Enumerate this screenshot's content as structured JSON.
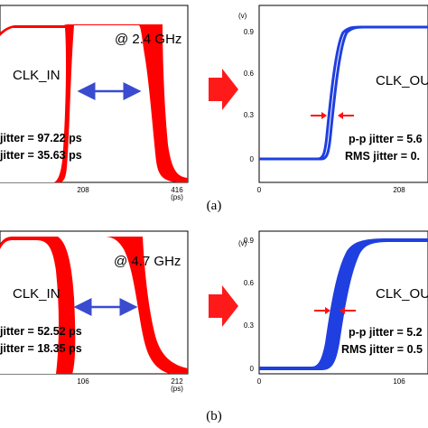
{
  "figure": {
    "rows": [
      {
        "caption": "(a)",
        "left_panel": {
          "signal_label": "CLK_IN",
          "frequency_label": "@ 2.4 GHz",
          "jitter_pp": "jitter = 97.22 ps",
          "jitter_rms": "jitter = 35.63 ps",
          "x_ticks": [
            "208",
            "416"
          ],
          "x_unit": "(ps)"
        },
        "right_panel": {
          "signal_label": "CLK_OU",
          "jitter_pp": "p-p jitter = 5.6",
          "jitter_rms": "RMS jitter = 0.",
          "y_unit": "(v)",
          "y_ticks": [
            "0.9",
            "0.6",
            "0.3",
            "0"
          ],
          "x_ticks": [
            "0",
            "208"
          ]
        }
      },
      {
        "caption": "(b)",
        "left_panel": {
          "signal_label": "CLK_IN",
          "frequency_label": "@ 4.7 GHz",
          "jitter_pp": "jitter = 52.52 ps",
          "jitter_rms": "jitter = 18.35 ps",
          "x_ticks": [
            "106",
            "212"
          ],
          "x_unit": "(ps)"
        },
        "right_panel": {
          "signal_label": "CLK_OU",
          "jitter_pp": "p-p jitter = 5.2",
          "jitter_rms": "RMS jitter = 0.5",
          "y_unit": "(v)",
          "y_ticks": [
            "0.9",
            "0.6",
            "0.3",
            "0"
          ],
          "x_ticks": [
            "0",
            "106"
          ]
        }
      }
    ],
    "colors": {
      "input_waveform": "#ff0000",
      "output_waveform": "#1f3fe0",
      "jitter_arrow_input": "#3a4bd0",
      "jitter_arrow_output": "#ff1010",
      "transition_arrow": "#ff1a1a"
    }
  }
}
